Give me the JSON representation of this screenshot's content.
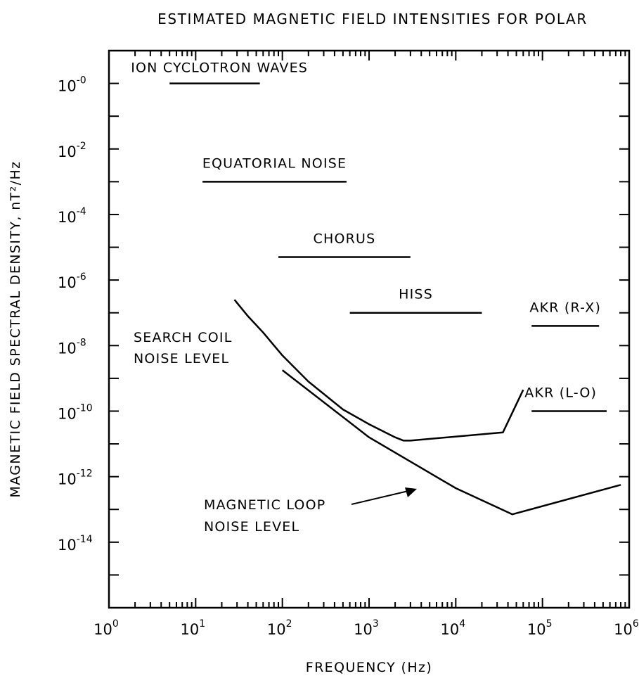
{
  "chart_data": {
    "type": "line",
    "title": "ESTIMATED MAGNETIC FIELD INTENSITIES FOR POLAR",
    "xlabel": "FREQUENCY (Hz)",
    "ylabel": "MAGNETIC FIELD SPECTRAL DENSITY, nT²/Hz",
    "xscale": "log",
    "yscale": "log",
    "xlim": [
      1,
      1000000
    ],
    "ylim_exp": [
      -16,
      1
    ],
    "x_ticks": [
      {
        "base": "10",
        "exp": "0",
        "value": 1
      },
      {
        "base": "10",
        "exp": "1",
        "value": 10
      },
      {
        "base": "10",
        "exp": "2",
        "value": 100
      },
      {
        "base": "10",
        "exp": "3",
        "value": 1000
      },
      {
        "base": "10",
        "exp": "4",
        "value": 10000
      },
      {
        "base": "10",
        "exp": "5",
        "value": 100000
      },
      {
        "base": "10",
        "exp": "6",
        "value": 1000000
      }
    ],
    "y_ticks": [
      {
        "base": "10",
        "exp": "-0",
        "value_exp": 0
      },
      {
        "base": "10",
        "exp": "-2",
        "value_exp": -2
      },
      {
        "base": "10",
        "exp": "-4",
        "value_exp": -4
      },
      {
        "base": "10",
        "exp": "-6",
        "value_exp": -6
      },
      {
        "base": "10",
        "exp": "-8",
        "value_exp": -8
      },
      {
        "base": "10",
        "exp": "-10",
        "value_exp": -10
      },
      {
        "base": "10",
        "exp": "-12",
        "value_exp": -12
      },
      {
        "base": "10",
        "exp": "-14",
        "value_exp": -14
      }
    ],
    "ranges": [
      {
        "name": "ION CYCLOTRON WAVES",
        "x": [
          5,
          55
        ],
        "y_exp": 0
      },
      {
        "name": "EQUATORIAL NOISE",
        "x": [
          12,
          550
        ],
        "y_exp": -3
      },
      {
        "name": "CHORUS",
        "x": [
          90,
          3000
        ],
        "y_exp": -5.3
      },
      {
        "name": "HISS",
        "x": [
          600,
          20000
        ],
        "y_exp": -7
      },
      {
        "name": "AKR (R-X)",
        "x": [
          75000,
          450000
        ],
        "y_exp": -7.4
      },
      {
        "name": "AKR (L-O)",
        "x": [
          75000,
          550000
        ],
        "y_exp": -10
      }
    ],
    "series": [
      {
        "name": "SEARCH COIL NOISE LEVEL",
        "x": [
          28,
          40,
          60,
          100,
          200,
          500,
          1000,
          2000,
          2500,
          3000,
          35000,
          60000
        ],
        "y_exp": [
          -6.6,
          -7.1,
          -7.6,
          -8.3,
          -9.1,
          -9.95,
          -10.4,
          -10.8,
          -10.9,
          -10.9,
          -10.65,
          -9.35
        ]
      },
      {
        "name": "MAGNETIC LOOP NOISE LEVEL",
        "x": [
          100,
          1000,
          10000,
          45000,
          800000
        ],
        "y_exp": [
          -8.75,
          -10.8,
          -12.35,
          -13.15,
          -12.25
        ]
      }
    ],
    "annotations": [
      {
        "text_lines": [
          "SEARCH COIL",
          "NOISE LEVEL"
        ]
      },
      {
        "text_lines": [
          "MAGNETIC LOOP",
          "NOISE LEVEL"
        ],
        "arrow": true
      }
    ],
    "grid": false
  }
}
